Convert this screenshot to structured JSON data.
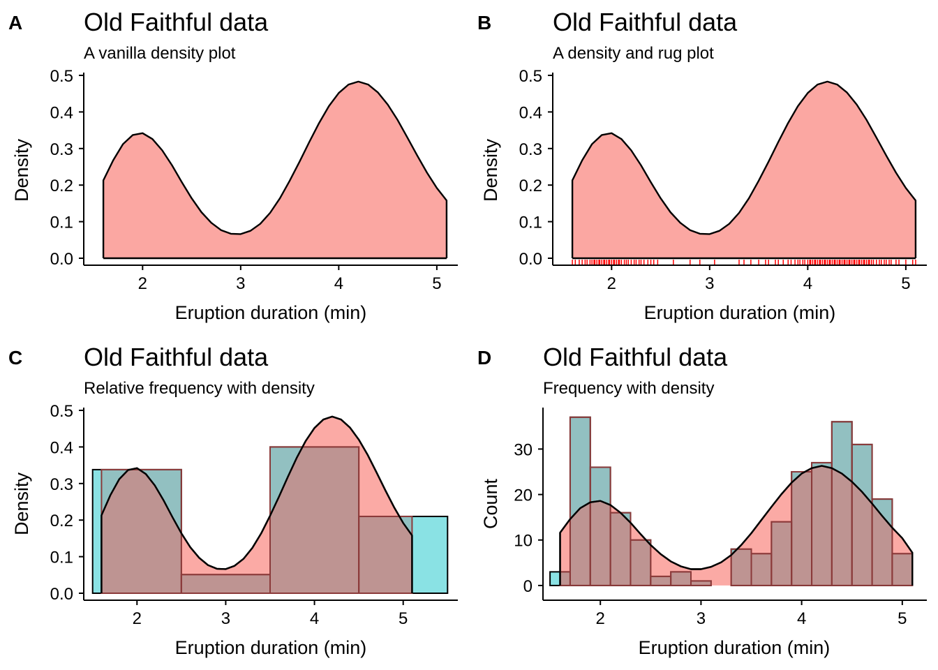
{
  "colors": {
    "density_fill": "#F8766D",
    "hist_fill": "#00BFC4",
    "hist_overlay_stroke": "#8B3A3A",
    "rug": "#FF0000",
    "outline": "#000000"
  },
  "chart_data": [
    {
      "panel": "A",
      "type": "area",
      "title": "Old Faithful data",
      "subtitle": "A vanilla density plot",
      "xlabel": "Eruption duration (min)",
      "ylabel": "Density",
      "xlim": [
        1.4,
        5.2
      ],
      "ylim": [
        0,
        0.5
      ],
      "xticks": [
        "2",
        "3",
        "4",
        "5"
      ],
      "yticks": [
        "0.0",
        "0.1",
        "0.2",
        "0.3",
        "0.4",
        "0.5"
      ],
      "grid": false,
      "series": [
        {
          "type": "density",
          "x": [
            1.6,
            1.7,
            1.8,
            1.9,
            2.0,
            2.1,
            2.2,
            2.3,
            2.4,
            2.5,
            2.6,
            2.7,
            2.8,
            2.9,
            3.0,
            3.1,
            3.2,
            3.3,
            3.4,
            3.5,
            3.6,
            3.7,
            3.8,
            3.9,
            4.0,
            4.1,
            4.2,
            4.3,
            4.4,
            4.5,
            4.6,
            4.7,
            4.8,
            4.9,
            5.0,
            5.1
          ],
          "y": [
            0.213,
            0.268,
            0.312,
            0.337,
            0.342,
            0.326,
            0.295,
            0.254,
            0.208,
            0.164,
            0.126,
            0.097,
            0.077,
            0.067,
            0.066,
            0.075,
            0.094,
            0.124,
            0.164,
            0.212,
            0.264,
            0.318,
            0.37,
            0.416,
            0.452,
            0.475,
            0.483,
            0.475,
            0.453,
            0.42,
            0.378,
            0.33,
            0.281,
            0.234,
            0.192,
            0.158
          ]
        }
      ]
    },
    {
      "panel": "B",
      "type": "area",
      "title": "Old Faithful data",
      "subtitle": "A density and rug plot",
      "xlabel": "Eruption duration (min)",
      "ylabel": "Density",
      "xlim": [
        1.4,
        5.2
      ],
      "ylim": [
        0,
        0.5
      ],
      "xticks": [
        "2",
        "3",
        "4",
        "5"
      ],
      "yticks": [
        "0.0",
        "0.1",
        "0.2",
        "0.3",
        "0.4",
        "0.5"
      ],
      "grid": false,
      "series": [
        {
          "type": "density",
          "x": [
            1.6,
            1.7,
            1.8,
            1.9,
            2.0,
            2.1,
            2.2,
            2.3,
            2.4,
            2.5,
            2.6,
            2.7,
            2.8,
            2.9,
            3.0,
            3.1,
            3.2,
            3.3,
            3.4,
            3.5,
            3.6,
            3.7,
            3.8,
            3.9,
            4.0,
            4.1,
            4.2,
            4.3,
            4.4,
            4.5,
            4.6,
            4.7,
            4.8,
            4.9,
            5.0,
            5.1
          ],
          "y": [
            0.213,
            0.268,
            0.312,
            0.337,
            0.342,
            0.326,
            0.295,
            0.254,
            0.208,
            0.164,
            0.126,
            0.097,
            0.077,
            0.067,
            0.066,
            0.075,
            0.094,
            0.124,
            0.164,
            0.212,
            0.264,
            0.318,
            0.37,
            0.416,
            0.452,
            0.475,
            0.483,
            0.475,
            0.453,
            0.42,
            0.378,
            0.33,
            0.281,
            0.234,
            0.192,
            0.158
          ]
        },
        {
          "type": "rug",
          "x": [
            1.6,
            1.63,
            1.67,
            1.7,
            1.73,
            1.75,
            1.78,
            1.8,
            1.82,
            1.83,
            1.85,
            1.87,
            1.88,
            1.9,
            1.92,
            1.93,
            1.95,
            1.97,
            1.98,
            2.0,
            2.02,
            2.03,
            2.05,
            2.07,
            2.08,
            2.1,
            2.13,
            2.15,
            2.17,
            2.2,
            2.23,
            2.25,
            2.28,
            2.3,
            2.33,
            2.37,
            2.4,
            2.43,
            2.47,
            2.63,
            2.8,
            2.9,
            3.05,
            3.3,
            3.35,
            3.42,
            3.5,
            3.57,
            3.6,
            3.67,
            3.7,
            3.75,
            3.8,
            3.83,
            3.87,
            3.9,
            3.92,
            3.95,
            3.97,
            4.0,
            4.02,
            4.03,
            4.05,
            4.07,
            4.08,
            4.1,
            4.12,
            4.13,
            4.15,
            4.17,
            4.18,
            4.2,
            4.22,
            4.23,
            4.25,
            4.27,
            4.28,
            4.3,
            4.32,
            4.33,
            4.35,
            4.37,
            4.38,
            4.4,
            4.42,
            4.43,
            4.45,
            4.47,
            4.48,
            4.5,
            4.52,
            4.53,
            4.55,
            4.57,
            4.58,
            4.6,
            4.62,
            4.63,
            4.65,
            4.67,
            4.7,
            4.73,
            4.75,
            4.78,
            4.8,
            4.83,
            4.85,
            4.9,
            4.93,
            5.0,
            5.07,
            5.1
          ]
        }
      ]
    },
    {
      "panel": "C",
      "type": "bar",
      "title": "Old Faithful data",
      "subtitle": "Relative frequency with density",
      "xlabel": "Eruption duration (min)",
      "ylabel": "Density",
      "xlim": [
        1.4,
        5.6
      ],
      "ylim": [
        0,
        0.5
      ],
      "xticks": [
        "2",
        "3",
        "4",
        "5"
      ],
      "yticks": [
        "0.0",
        "0.1",
        "0.2",
        "0.3",
        "0.4",
        "0.5"
      ],
      "grid": false,
      "series": [
        {
          "type": "histogram",
          "bins": [
            [
              1.5,
              2.5
            ],
            [
              2.5,
              3.5
            ],
            [
              3.5,
              4.5
            ],
            [
              4.5,
              5.5
            ]
          ],
          "values": [
            0.338,
            0.051,
            0.4,
            0.21
          ]
        },
        {
          "type": "histogram_overlay",
          "bins": [
            [
              1.6,
              2.5
            ],
            [
              2.5,
              3.5
            ],
            [
              3.5,
              4.5
            ],
            [
              4.5,
              5.1
            ]
          ],
          "values": [
            0.338,
            0.051,
            0.4,
            0.21
          ]
        },
        {
          "type": "density",
          "x": [
            1.6,
            1.7,
            1.8,
            1.9,
            2.0,
            2.1,
            2.2,
            2.3,
            2.4,
            2.5,
            2.6,
            2.7,
            2.8,
            2.9,
            3.0,
            3.1,
            3.2,
            3.3,
            3.4,
            3.5,
            3.6,
            3.7,
            3.8,
            3.9,
            4.0,
            4.1,
            4.2,
            4.3,
            4.4,
            4.5,
            4.6,
            4.7,
            4.8,
            4.9,
            5.0,
            5.1
          ],
          "y": [
            0.213,
            0.268,
            0.312,
            0.337,
            0.342,
            0.326,
            0.295,
            0.254,
            0.208,
            0.164,
            0.126,
            0.097,
            0.077,
            0.067,
            0.066,
            0.075,
            0.094,
            0.124,
            0.164,
            0.212,
            0.264,
            0.318,
            0.37,
            0.416,
            0.452,
            0.475,
            0.483,
            0.475,
            0.453,
            0.42,
            0.378,
            0.33,
            0.281,
            0.234,
            0.192,
            0.158
          ]
        }
      ]
    },
    {
      "panel": "D",
      "type": "bar",
      "title": "Old Faithful data",
      "subtitle": "Frequency with density",
      "xlabel": "Eruption duration (min)",
      "ylabel": "Count",
      "xlim": [
        1.43,
        5.23
      ],
      "ylim": [
        -1.7,
        38.5
      ],
      "xticks": [
        "2",
        "3",
        "4",
        "5"
      ],
      "yticks": [
        "0",
        "10",
        "20",
        "30"
      ],
      "grid": false,
      "series": [
        {
          "type": "histogram",
          "bin_start": 1.5,
          "bin_width": 0.2,
          "values": [
            3,
            37,
            26,
            16,
            10,
            2,
            3,
            1,
            0,
            8,
            7,
            14,
            25,
            27,
            36,
            31,
            19,
            7
          ]
        },
        {
          "type": "histogram_overlay",
          "bin_start": 1.5,
          "bin_width": 0.2,
          "range": [
            1.6,
            5.1
          ],
          "values": [
            3,
            37,
            26,
            16,
            10,
            2,
            3,
            1,
            0,
            8,
            7,
            14,
            25,
            27,
            36,
            31,
            19,
            7
          ]
        },
        {
          "type": "density_scaled",
          "x": [
            1.6,
            1.7,
            1.8,
            1.9,
            2.0,
            2.1,
            2.2,
            2.3,
            2.4,
            2.5,
            2.6,
            2.7,
            2.8,
            2.9,
            3.0,
            3.1,
            3.2,
            3.3,
            3.4,
            3.5,
            3.6,
            3.7,
            3.8,
            3.9,
            4.0,
            4.1,
            4.2,
            4.3,
            4.4,
            4.5,
            4.6,
            4.7,
            4.8,
            4.9,
            5.0,
            5.1
          ],
          "y": [
            11.6,
            14.6,
            17.0,
            18.3,
            18.6,
            17.7,
            16.0,
            13.8,
            11.3,
            8.9,
            6.9,
            5.3,
            4.2,
            3.6,
            3.6,
            4.1,
            5.1,
            6.7,
            8.9,
            11.5,
            14.4,
            17.3,
            20.1,
            22.6,
            24.6,
            25.8,
            26.3,
            25.8,
            24.6,
            22.8,
            20.6,
            18.0,
            15.3,
            12.7,
            10.4,
            7.2
          ]
        }
      ]
    }
  ]
}
